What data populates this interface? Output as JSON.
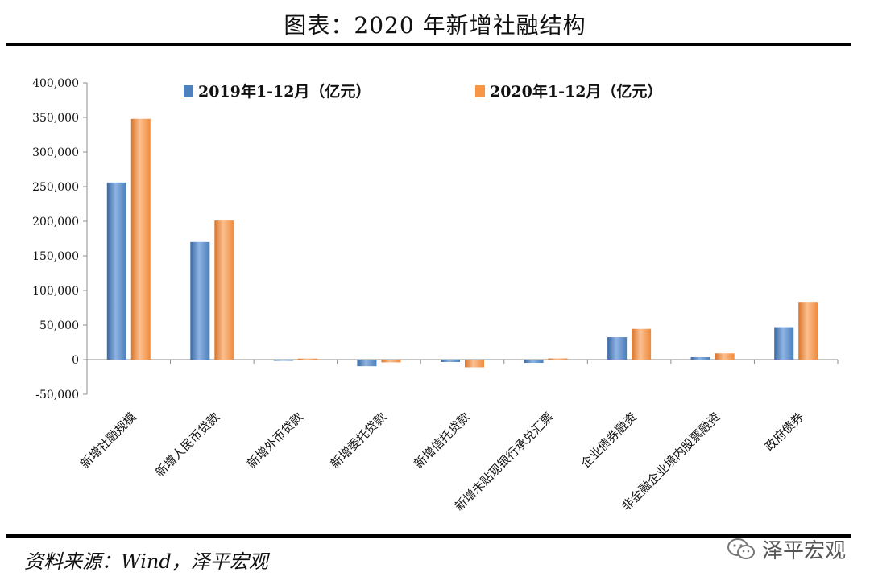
{
  "header": {
    "title": "图表：2020 年新增社融结构"
  },
  "footer": {
    "source": "资料来源：Wind，泽平宏观",
    "watermark": "泽平宏观",
    "watermark_icon": "wechat-icon"
  },
  "colors": {
    "series_2019": "#4f81bd",
    "series_2020": "#f79646",
    "axis": "#8c8c8c"
  },
  "chart_data": {
    "type": "bar",
    "title": "图表：2020 年新增社融结构",
    "xlabel": "",
    "ylabel": "",
    "ylim": [
      -50000,
      400000
    ],
    "yticks": [
      -50000,
      0,
      50000,
      100000,
      150000,
      200000,
      250000,
      300000,
      350000,
      400000
    ],
    "ytick_labels": [
      "-50,000",
      "0",
      "50,000",
      "100,000",
      "150,000",
      "200,000",
      "250,000",
      "300,000",
      "350,000",
      "400,000"
    ],
    "grid": false,
    "legend_position": "top",
    "categories": [
      "新增社融规模",
      "新增人民币贷款",
      "新增外币贷款",
      "新增委托贷款",
      "新增信托贷款",
      "新增未贴现银行承兑汇票",
      "企业债券融资",
      "非金融企业境内股票融资",
      "政府债券"
    ],
    "series": [
      {
        "name": "2019年1-12月（亿元）",
        "values": [
          256000,
          170000,
          -1500,
          -9500,
          -3500,
          -4700,
          32500,
          3500,
          47000
        ]
      },
      {
        "name": "2020年1-12月（亿元）",
        "values": [
          348000,
          201000,
          1500,
          -4000,
          -11000,
          1700,
          44500,
          9000,
          83500
        ]
      }
    ]
  }
}
